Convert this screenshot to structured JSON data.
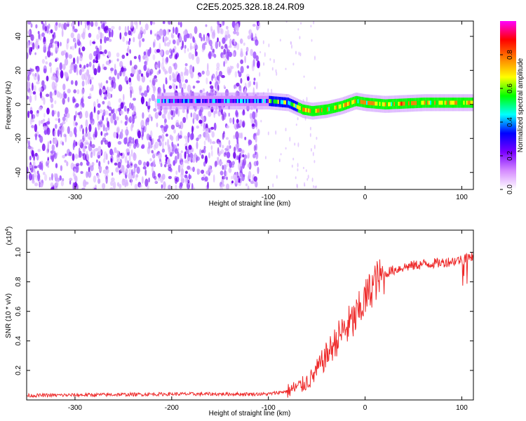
{
  "title": "C2E5.2025.328.18.24.R09",
  "chart_data": [
    {
      "type": "heatmap",
      "name": "spectrogram",
      "xlabel": "Height of straight line (km)",
      "ylabel": "Frequency (Hz)",
      "xlim": [
        -350,
        112
      ],
      "ylim": [
        -50,
        49
      ],
      "xticks": [
        -300,
        -200,
        -100,
        0,
        100
      ],
      "yticks": [
        -40,
        -20,
        0,
        20,
        40
      ],
      "colorbar": {
        "label": "Normalized spectral amplitude",
        "range": [
          0.0,
          1.0
        ],
        "ticks": [
          "0.0",
          "0.2",
          "0.4",
          "0.6",
          "0.8"
        ],
        "colors": [
          "#ffffff",
          "#d58bff",
          "#7a00ff",
          "#0000ff",
          "#00ffff",
          "#00ff00",
          "#ffff00",
          "#ff8000",
          "#ff0000",
          "#ff00ff"
        ]
      },
      "noise_region_x": [
        -350,
        -110
      ],
      "ridge": [
        {
          "x": -210,
          "f": 2
        },
        {
          "x": -150,
          "f": 2
        },
        {
          "x": -100,
          "f": 2
        },
        {
          "x": -80,
          "f": 1
        },
        {
          "x": -65,
          "f": -3
        },
        {
          "x": -55,
          "f": -4
        },
        {
          "x": -40,
          "f": -3
        },
        {
          "x": -25,
          "f": -1
        },
        {
          "x": -10,
          "f": 2
        },
        {
          "x": 0,
          "f": 1
        },
        {
          "x": 20,
          "f": 0
        },
        {
          "x": 60,
          "f": 1
        },
        {
          "x": 112,
          "f": 1
        }
      ]
    },
    {
      "type": "line",
      "name": "snr",
      "xlabel": "Height of straight line (km)",
      "ylabel": "SNR (10 * v/v)",
      "yscale_label": "(x10",
      "yscale_exp": "4",
      "yscale_close": ")",
      "xlim": [
        -350,
        112
      ],
      "ylim": [
        0,
        1.15
      ],
      "xticks": [
        -300,
        -200,
        -100,
        0,
        100
      ],
      "yticks": [
        0.2,
        0.4,
        0.6,
        0.8,
        1.0
      ],
      "ytick_labels": [
        "0.2",
        "0.4",
        "0.6",
        "0.8",
        "1.0"
      ],
      "color": "#ee2a2a",
      "series": [
        {
          "name": "SNR",
          "x": [
            -350,
            -200,
            -100,
            -80,
            -65,
            -55,
            -40,
            -25,
            -10,
            0,
            10,
            25,
            40,
            60,
            80,
            100,
            112
          ],
          "y": [
            0.03,
            0.04,
            0.04,
            0.06,
            0.1,
            0.15,
            0.3,
            0.45,
            0.55,
            0.68,
            0.8,
            0.87,
            0.9,
            0.92,
            0.93,
            0.95,
            0.98
          ]
        }
      ]
    }
  ]
}
